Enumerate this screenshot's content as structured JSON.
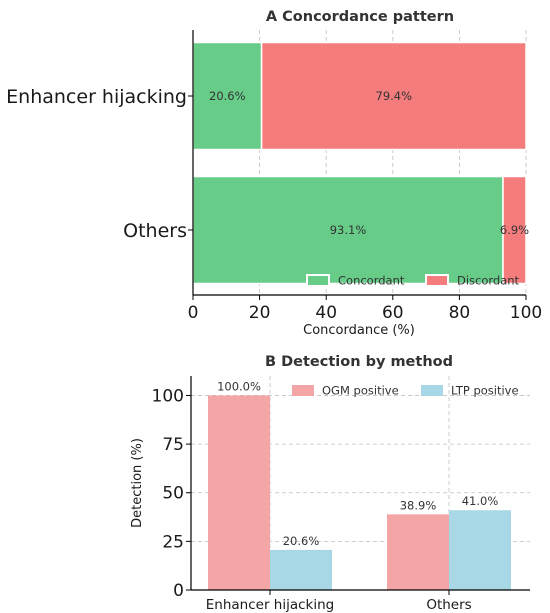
{
  "chart_data": [
    {
      "type": "bar",
      "orientation": "horizontal",
      "stacked": true,
      "title": "A  Concordance pattern",
      "categories": [
        "Enhancer hijacking",
        "Others"
      ],
      "series": [
        {
          "name": "Concordant",
          "values": [
            20.6,
            93.1
          ],
          "labels": [
            "20.6%",
            "93.1%"
          ],
          "color": "#66cc88"
        },
        {
          "name": "Discordant",
          "values": [
            79.4,
            6.9
          ],
          "labels": [
            "79.4%",
            "6.9%"
          ],
          "color": "#f47c7c"
        }
      ],
      "xlabel": "Concordance (%)",
      "ylabel": "",
      "xlim": [
        0,
        100
      ],
      "xticks": [
        "0",
        "20",
        "40",
        "60",
        "80",
        "100"
      ],
      "grid": true,
      "legend": "bottom-right"
    },
    {
      "type": "bar",
      "orientation": "vertical",
      "stacked": false,
      "title": "B  Detection by method",
      "categories": [
        "Enhancer hijacking",
        "Others"
      ],
      "series": [
        {
          "name": "OGM positive",
          "values": [
            100.0,
            38.9
          ],
          "labels": [
            "100.0%",
            "38.9%"
          ],
          "color": "#f4a6a6"
        },
        {
          "name": "LTP positive",
          "values": [
            20.6,
            41.0
          ],
          "labels": [
            "20.6%",
            "41.0%"
          ],
          "color": "#a8d8e6"
        }
      ],
      "xlabel": "",
      "ylabel": "Detection (%)",
      "ylim": [
        0,
        110
      ],
      "yticks": [
        "0",
        "25",
        "50",
        "75",
        "100"
      ],
      "grid": true,
      "legend": "top-right"
    }
  ]
}
